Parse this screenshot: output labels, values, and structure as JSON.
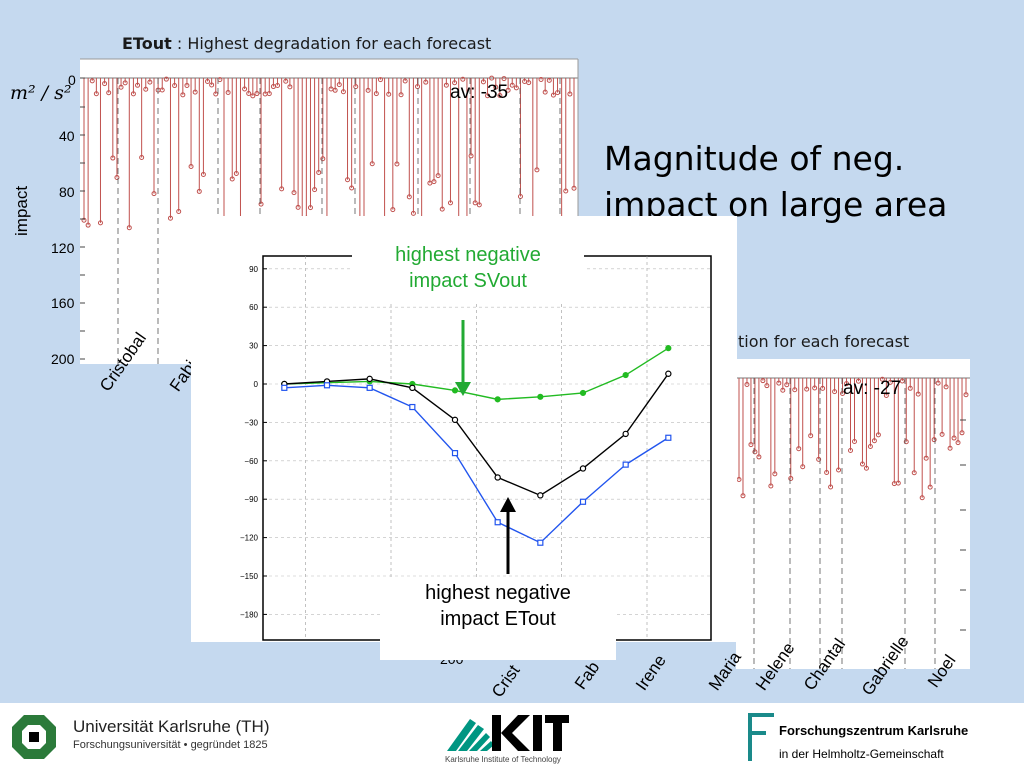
{
  "slide": {
    "heading_line1": "Magnitude of neg.",
    "heading_line2": "impact on large area",
    "colors": {
      "background": "#c5d9ef",
      "stem": "#c0504d",
      "green": "#22bb22",
      "blue": "#2255ee",
      "black": "#000000"
    }
  },
  "top_panel": {
    "title_bold": "ETout",
    "title_rest": " : Highest degradation for each forecast",
    "ylabel": "impact",
    "unit": "m² / s²",
    "avg_label": "av: -35",
    "yticks": [
      "0",
      "40",
      "80",
      "120",
      "160",
      "200"
    ],
    "storm_labels": [
      "Cristobal",
      "Fabi"
    ]
  },
  "right_panel": {
    "title_partial": "tion for each forecast",
    "avg_label": "av: -27",
    "ytick_bottom": "200",
    "storm_labels": [
      "Crist",
      "Fab",
      "Irene",
      "Maria",
      "Helene",
      "Chantal",
      "Gabrielle",
      "Noel"
    ]
  },
  "callouts": {
    "svout": {
      "line1": "highest negative",
      "line2": "impact SVout"
    },
    "etout": {
      "line1": "highest negative",
      "line2": "impact ETout"
    }
  },
  "chart_data": {
    "type": "line",
    "x": [
      1,
      2,
      3,
      4,
      5,
      6,
      7,
      8,
      9,
      10
    ],
    "ylim": [
      -200,
      100
    ],
    "yticks": [
      90,
      60,
      30,
      0,
      -30,
      -60,
      -90,
      -120,
      -150,
      -180
    ],
    "series": [
      {
        "name": "",
        "color": "#22bb22",
        "marker": "circle-filled",
        "values": [
          0,
          1,
          2,
          0,
          -5,
          -12,
          -10,
          -7,
          7,
          28
        ]
      },
      {
        "name": "",
        "color": "#000000",
        "marker": "circle-open",
        "values": [
          0,
          2,
          4,
          -3,
          -28,
          -73,
          -87,
          -66,
          -39,
          8
        ]
      },
      {
        "name": "",
        "color": "#2255ee",
        "marker": "square-open",
        "values": [
          -3,
          -1,
          -3,
          -18,
          -54,
          -108,
          -124,
          -92,
          -63,
          -42
        ]
      }
    ]
  },
  "footer": {
    "uni_name": "Universität Karlsruhe (TH)",
    "uni_sub": "Forschungsuniversität • gegründet 1825",
    "kit_sub": "Karlsruhe Institute of Technology",
    "fz_name": "Forschungszentrum Karlsruhe",
    "fz_sub": "in der Helmholtz-Gemeinschaft"
  }
}
